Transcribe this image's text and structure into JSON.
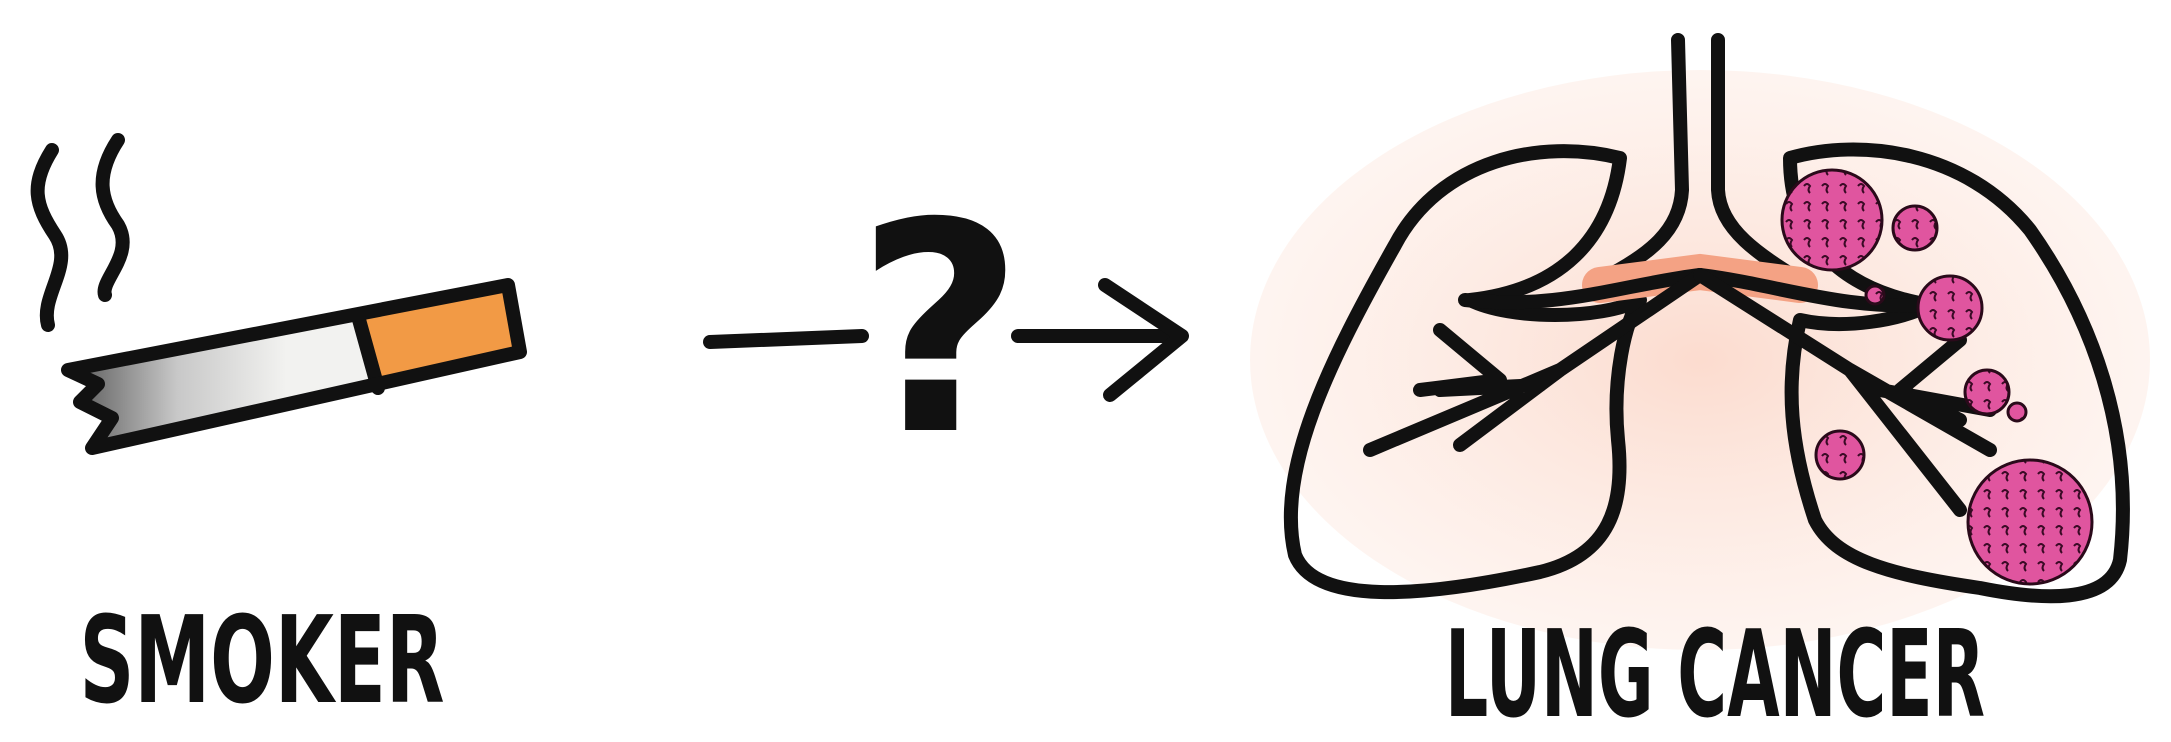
{
  "nodes": [
    {
      "label": "SMOKER"
    },
    {
      "label": "LUNG CANCER"
    }
  ],
  "edge": {
    "label": "?"
  }
}
